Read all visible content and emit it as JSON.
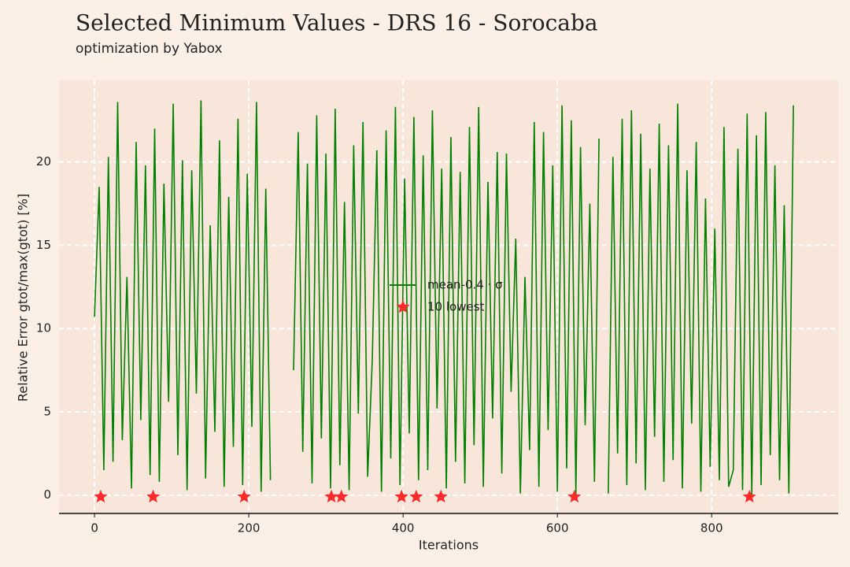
{
  "chart_data": {
    "type": "line",
    "title": "Selected Minimum Values - DRS 16 - Sorocaba",
    "subtitle": "optimization by Yabox",
    "xlabel": "Iterations",
    "ylabel": "Relative Error gtot/max(gtot) [%]",
    "xlim": [
      -46,
      964
    ],
    "ylim": [
      -1.1,
      24.9
    ],
    "xticks": [
      0,
      200,
      400,
      600,
      800
    ],
    "yticks": [
      0,
      5,
      10,
      15,
      20
    ],
    "grid": true,
    "legend": "center",
    "series": [
      {
        "name": "mean-0.4 · σ",
        "color": "#008000",
        "marker": "none",
        "x": [
          0,
          6,
          12,
          18,
          24,
          30,
          36,
          42,
          48,
          54,
          60,
          66,
          72,
          78,
          84,
          90,
          96,
          102,
          108,
          114,
          120,
          126,
          132,
          138,
          144,
          150,
          156,
          162,
          168,
          174,
          180,
          186,
          192,
          198,
          204,
          210,
          216,
          222,
          228,
          234,
          240,
          246,
          252,
          258,
          264,
          270,
          276,
          282,
          288,
          294,
          300,
          306,
          312,
          318,
          324,
          330,
          336,
          342,
          348,
          354,
          360,
          366,
          372,
          378,
          384,
          390,
          396,
          402,
          408,
          414,
          420,
          426,
          432,
          438,
          444,
          450,
          456,
          462,
          468,
          474,
          480,
          486,
          492,
          498,
          504,
          510,
          516,
          522,
          528,
          534,
          540,
          546,
          552,
          558,
          564,
          570,
          576,
          582,
          588,
          594,
          600,
          606,
          612,
          618,
          624,
          630,
          636,
          642,
          648,
          654,
          660,
          666,
          672,
          678,
          684,
          690,
          696,
          702,
          708,
          714,
          720,
          726,
          732,
          738,
          744,
          750,
          756,
          762,
          768,
          774,
          780,
          786,
          792,
          798,
          804,
          810,
          816,
          822,
          828,
          834,
          840,
          846,
          852,
          858,
          864,
          870,
          876,
          882,
          888,
          894,
          900,
          906
        ],
        "values": [
          10.7,
          18.5,
          1.5,
          20.3,
          2.0,
          23.6,
          3.3,
          13.1,
          0.4,
          21.2,
          4.5,
          19.8,
          1.2,
          22.0,
          0.8,
          18.7,
          5.6,
          23.5,
          2.4,
          20.1,
          0.3,
          19.5,
          6.1,
          23.7,
          1.0,
          16.2,
          3.8,
          21.3,
          0.5,
          17.9,
          2.9,
          22.6,
          0.6,
          19.3,
          4.1,
          23.6,
          0.2,
          18.4,
          0.9,
          null,
          null,
          null,
          null,
          7.5,
          21.8,
          2.6,
          19.9,
          0.7,
          22.8,
          3.4,
          20.5,
          0.4,
          23.2,
          1.8,
          17.6,
          0.3,
          21.0,
          4.9,
          22.4,
          1.1,
          8.1,
          20.7,
          0.2,
          21.9,
          2.2,
          23.3,
          0.6,
          19.0,
          3.7,
          22.7,
          0.9,
          20.4,
          1.5,
          23.1,
          5.2,
          19.6,
          0.4,
          21.5,
          2.0,
          19.4,
          0.7,
          22.1,
          3.0,
          23.3,
          0.5,
          18.8,
          4.6,
          20.6,
          1.3,
          20.5,
          6.2,
          15.4,
          0.1,
          13.1,
          2.7,
          22.4,
          0.5,
          21.8,
          3.9,
          19.8,
          0.2,
          23.4,
          1.6,
          22.5,
          0.0,
          20.9,
          4.2,
          17.5,
          0.8,
          21.4,
          null,
          0.1,
          20.3,
          2.5,
          22.6,
          0.6,
          23.1,
          1.9,
          21.7,
          0.3,
          19.6,
          3.5,
          22.3,
          0.8,
          21.0,
          2.1,
          23.5,
          0.4,
          19.5,
          4.3,
          21.2,
          0.2,
          17.8,
          1.7,
          16.0,
          0.9,
          22.1,
          0.5,
          1.5,
          20.8,
          0.3,
          22.9,
          0.0,
          21.6,
          0.6,
          23.0,
          2.4,
          19.8,
          0.9,
          17.4,
          0.1,
          23.4
        ]
      },
      {
        "name": "10 lowest",
        "color": "#ff2a2a",
        "marker": "star",
        "x": [
          8,
          76,
          194,
          307,
          320,
          398,
          417,
          449,
          622,
          849
        ],
        "values": [
          -0.1,
          -0.1,
          -0.1,
          -0.1,
          -0.1,
          -0.1,
          -0.1,
          -0.1,
          -0.1,
          -0.1
        ]
      }
    ]
  }
}
